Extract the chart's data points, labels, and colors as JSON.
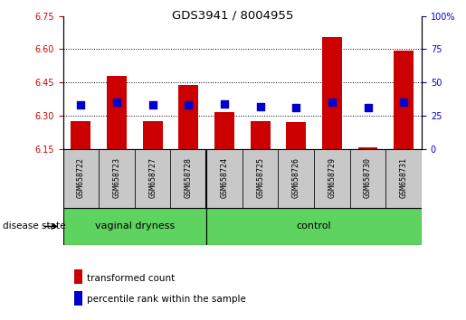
{
  "title": "GDS3941 / 8004955",
  "samples": [
    "GSM658722",
    "GSM658723",
    "GSM658727",
    "GSM658728",
    "GSM658724",
    "GSM658725",
    "GSM658726",
    "GSM658729",
    "GSM658730",
    "GSM658731"
  ],
  "transformed_count": [
    6.275,
    6.48,
    6.275,
    6.44,
    6.315,
    6.275,
    6.27,
    6.655,
    6.155,
    6.595
  ],
  "percentile_rank": [
    33,
    35,
    33,
    33,
    34,
    32,
    31,
    35,
    31,
    35
  ],
  "ylim_left": [
    6.15,
    6.75
  ],
  "ylim_right": [
    0,
    100
  ],
  "yticks_left": [
    6.15,
    6.3,
    6.45,
    6.6,
    6.75
  ],
  "yticks_right": [
    0,
    25,
    50,
    75,
    100
  ],
  "grid_lines": [
    6.3,
    6.45,
    6.6
  ],
  "bar_color": "#CC0000",
  "dot_color": "#0000CC",
  "bar_baseline": 6.15,
  "bar_width": 0.55,
  "dot_size": 28,
  "disease_state_label": "disease state",
  "legend_items": [
    {
      "label": "transformed count",
      "color": "#CC0000"
    },
    {
      "label": "percentile rank within the sample",
      "color": "#0000CC"
    }
  ],
  "axis_color_left": "#CC0000",
  "axis_color_right": "#0000CC",
  "separator_idx": 4,
  "group_label_bg": "#C8C8C8",
  "group_bg_color": "#5FD35F",
  "vd_label": "vaginal dryness",
  "ctrl_label": "control",
  "vd_count": 4,
  "ctrl_count": 6,
  "ytick_label_size": 7,
  "xtick_label_size": 6
}
